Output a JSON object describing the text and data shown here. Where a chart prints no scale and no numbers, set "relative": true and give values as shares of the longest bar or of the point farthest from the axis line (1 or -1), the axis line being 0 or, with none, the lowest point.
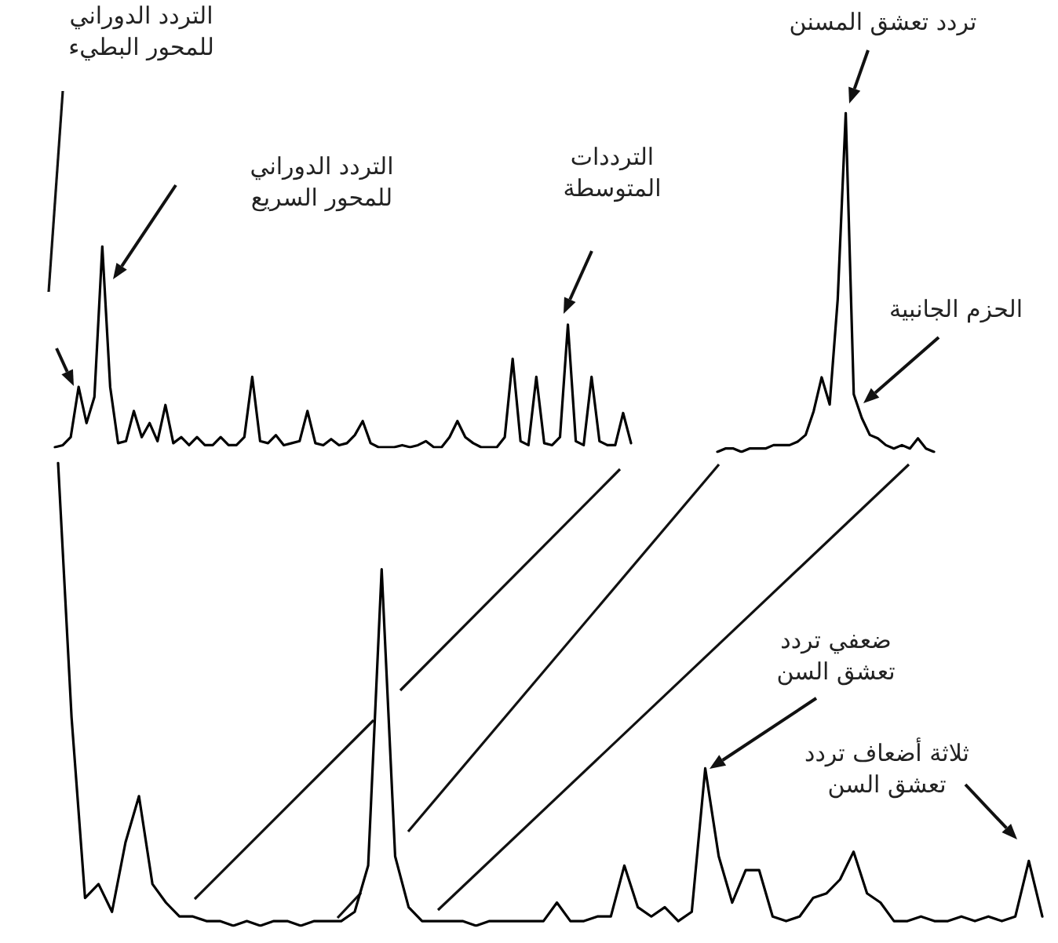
{
  "chart_data": [
    {
      "type": "line",
      "relative": true,
      "marker": "none",
      "color": "#000000",
      "categories": [
        null,
        null,
        null,
        null,
        null,
        null,
        null,
        null,
        null,
        null,
        null,
        null,
        null,
        null,
        null,
        null,
        null,
        null,
        null,
        null,
        null,
        null,
        null,
        null,
        null,
        null,
        null,
        null,
        null,
        null,
        null,
        null,
        null,
        null,
        null,
        null,
        null,
        null,
        null,
        null,
        null,
        null,
        null,
        null,
        null,
        null,
        null,
        null,
        null,
        null,
        null,
        null,
        null,
        null,
        null,
        null,
        null,
        null,
        null,
        null,
        null,
        null,
        null,
        null,
        null,
        null,
        null,
        null,
        null,
        null,
        null,
        null,
        null,
        null
      ],
      "values": [
        0,
        0.01,
        0.05,
        0.3,
        0.12,
        0.25,
        1,
        0.3,
        0.02,
        0.03,
        0.18,
        0.05,
        0.12,
        0.03,
        0.21,
        0.02,
        0.05,
        0.01,
        0.05,
        0.01,
        0.01,
        0.05,
        0.01,
        0.01,
        0.05,
        0.35,
        0.03,
        0.02,
        0.06,
        0.01,
        0.02,
        0.03,
        0.18,
        0.02,
        0.01,
        0.04,
        0.01,
        0.02,
        0.06,
        0.13,
        0.02,
        0,
        0,
        0,
        0.01,
        0,
        0.01,
        0.03,
        0,
        0,
        0.05,
        0.13,
        0.05,
        0.02,
        0,
        0,
        0,
        0.05,
        0.44,
        0.03,
        0.01,
        0.35,
        0.02,
        0.01,
        0.05,
        0.61,
        0.03,
        0.01,
        0.35,
        0.03,
        0.01,
        0.01,
        0.17,
        0.02
      ],
      "annotations": [
        "التردد الدوراني\nللمحور البطيء",
        "التردد الدوراني\nللمحور السريع",
        "الترددات\nالمتوسطة"
      ]
    },
    {
      "type": "line",
      "relative": true,
      "marker": "none",
      "color": "#000000",
      "categories": [
        null,
        null,
        null,
        null,
        null,
        null,
        null,
        null,
        null,
        null,
        null,
        null,
        null,
        null,
        null,
        null,
        null,
        null,
        null,
        null,
        null,
        null,
        null,
        null,
        null,
        null,
        null,
        null
      ],
      "values": [
        0,
        0.01,
        0.01,
        0,
        0.01,
        0.01,
        0.01,
        0.02,
        0.02,
        0.02,
        0.03,
        0.05,
        0.12,
        0.22,
        0.14,
        0.45,
        1,
        0.17,
        0.1,
        0.05,
        0.04,
        0.02,
        0.01,
        0.02,
        0.01,
        0.04,
        0.01,
        0
      ],
      "annotations": [
        "تردد تعشق المسنن",
        "الحزم الجانبية"
      ]
    },
    {
      "type": "line",
      "relative": true,
      "marker": "none",
      "color": "#000000",
      "categories": [
        null,
        null,
        null,
        null,
        null,
        null,
        null,
        null,
        null,
        null,
        null,
        null,
        null,
        null,
        null,
        null,
        null,
        null,
        null,
        null,
        null,
        null,
        null,
        null,
        null,
        null,
        null,
        null,
        null,
        null,
        null,
        null,
        null,
        null,
        null,
        null,
        null,
        null,
        null,
        null,
        null,
        null,
        null,
        null,
        null,
        null,
        null,
        null,
        null,
        null,
        null,
        null,
        null,
        null,
        null,
        null,
        null,
        null,
        null,
        null,
        null,
        null,
        null,
        null,
        null,
        null,
        null,
        null,
        null,
        null,
        null,
        null,
        null,
        null
      ],
      "values": [
        1,
        0.45,
        0.06,
        0.09,
        0.03,
        0.18,
        0.28,
        0.09,
        0.05,
        0.02,
        0.02,
        0.01,
        0.01,
        0,
        0.01,
        0,
        0.01,
        0.01,
        0,
        0.01,
        0.01,
        0.01,
        0.03,
        0.13,
        0.77,
        0.15,
        0.04,
        0.01,
        0.01,
        0.01,
        0.01,
        0,
        0.01,
        0.01,
        0.01,
        0.01,
        0.01,
        0.05,
        0.01,
        0.01,
        0.02,
        0.02,
        0.13,
        0.04,
        0.02,
        0.04,
        0.01,
        0.03,
        0.34,
        0.15,
        0.05,
        0.12,
        0.12,
        0.02,
        0.01,
        0.02,
        0.06,
        0.07,
        0.1,
        0.16,
        0.07,
        0.05,
        0.01,
        0.01,
        0.02,
        0.01,
        0.01,
        0.02,
        0.01,
        0.02,
        0.01,
        0.02,
        0.14,
        0.02
      ],
      "annotations": [
        "ضعفي تردد\nتعشق السن",
        "ثلاثة أضعاف تردد\nتعشق السن"
      ]
    }
  ]
}
